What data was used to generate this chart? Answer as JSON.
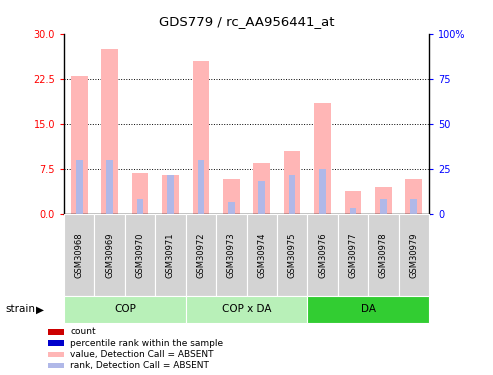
{
  "title": "GDS779 / rc_AA956441_at",
  "samples": [
    "GSM30968",
    "GSM30969",
    "GSM30970",
    "GSM30971",
    "GSM30972",
    "GSM30973",
    "GSM30974",
    "GSM30975",
    "GSM30976",
    "GSM30977",
    "GSM30978",
    "GSM30979"
  ],
  "value_absent": [
    23.0,
    27.5,
    6.8,
    6.5,
    25.5,
    5.8,
    8.5,
    10.5,
    18.5,
    3.8,
    4.5,
    5.8
  ],
  "rank_absent": [
    9.0,
    9.0,
    2.5,
    6.5,
    9.0,
    2.0,
    5.5,
    6.5,
    7.5,
    1.0,
    2.5,
    2.5
  ],
  "ylim_left": [
    0,
    30
  ],
  "ylim_right": [
    0,
    100
  ],
  "yticks_left": [
    0,
    7.5,
    15,
    22.5,
    30
  ],
  "yticks_right": [
    0,
    25,
    50,
    75,
    100
  ],
  "yticklabels_right": [
    "0",
    "25",
    "50",
    "75",
    "100%"
  ],
  "color_value_absent": "#ffb6b6",
  "color_rank_absent": "#b0b8e8",
  "color_count": "#cc0000",
  "color_pct_rank": "#0000cc",
  "group_defs": [
    {
      "start": 0,
      "end": 4,
      "color": "#b8f0b8",
      "label": "COP"
    },
    {
      "start": 4,
      "end": 8,
      "color": "#b8f0b8",
      "label": "COP x DA"
    },
    {
      "start": 8,
      "end": 12,
      "color": "#32cd32",
      "label": "DA"
    }
  ],
  "sample_box_color": "#d3d3d3",
  "legend_items": [
    {
      "label": "count",
      "color": "#cc0000"
    },
    {
      "label": "percentile rank within the sample",
      "color": "#0000cc"
    },
    {
      "label": "value, Detection Call = ABSENT",
      "color": "#ffb6b6"
    },
    {
      "label": "rank, Detection Call = ABSENT",
      "color": "#b0b8e8"
    }
  ]
}
